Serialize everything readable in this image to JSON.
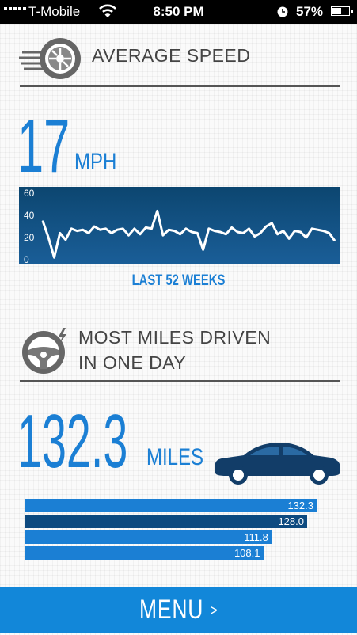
{
  "status_bar": {
    "carrier": "T-Mobile",
    "time": "8:50 PM",
    "battery": "57%",
    "battery_level": 0.57
  },
  "avg_speed": {
    "icon": "tire-icon",
    "title": "AVERAGE SPEED",
    "value": "17",
    "unit": "MPH",
    "caption": "LAST 52 WEEKS",
    "chart_data": {
      "type": "line",
      "title": "",
      "xlabel": "",
      "ylabel": "",
      "ylim": [
        0,
        60
      ],
      "yticks": [
        60,
        40,
        20,
        0
      ],
      "grid": false,
      "series": [
        {
          "values": [
            35,
            20,
            2,
            24,
            18,
            28,
            26,
            27,
            24,
            30,
            27,
            28,
            24,
            27,
            28,
            22,
            28,
            23,
            29,
            28,
            44,
            22,
            27,
            26,
            23,
            28,
            25,
            24,
            9,
            28,
            26,
            25,
            23,
            29,
            25,
            24,
            28,
            21,
            24,
            30,
            33,
            23,
            26,
            19,
            26,
            25,
            20,
            28,
            27,
            26,
            24,
            17
          ]
        }
      ],
      "colors": {
        "background_top": "#0c4670",
        "background_bottom": "#1a5e98",
        "line": "#ffffff"
      }
    }
  },
  "most_miles": {
    "icon": "steering-wheel-icon",
    "title_line1": "MOST MILES DRIVEN",
    "title_line2": "IN ONE DAY",
    "value": "132.3",
    "unit": "MILES",
    "car_icon": "car-icon",
    "bars": [
      {
        "value": 132.3,
        "label": "132.3",
        "color": "#1b7fd4"
      },
      {
        "value": 128.0,
        "label": "128.0",
        "color": "#0d4a80"
      },
      {
        "value": 111.8,
        "label": "111.8",
        "color": "#1b7fd4"
      },
      {
        "value": 108.1,
        "label": "108.1",
        "color": "#1b7fd4"
      }
    ]
  },
  "menu": {
    "label": "MENU",
    "chevron": ">"
  },
  "colors": {
    "accent": "#1b7fd4",
    "dark_accent": "#0d4a80",
    "menu_bg": "#1287d9",
    "text": "#444444"
  }
}
